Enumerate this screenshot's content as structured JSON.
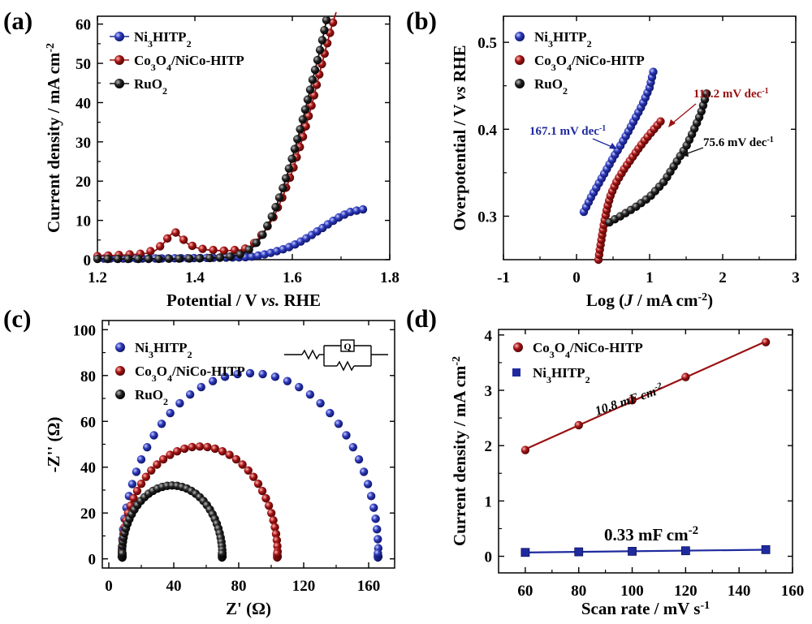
{
  "colors": {
    "blue": "#1f2a9e",
    "red": "#9b1111",
    "black": "#111111"
  },
  "chart_data": [
    {
      "type": "line",
      "panel_label": "(a)",
      "xlabel": "Potential / V ",
      "xlabel_em": "vs.",
      "xlabel_tail": " RHE",
      "ylabel": "Current density / mA cm",
      "ylabel_sup": "-2",
      "xlim": [
        1.2,
        1.8
      ],
      "ylim": [
        0,
        62
      ],
      "xticks": [
        1.2,
        1.4,
        1.6,
        1.8
      ],
      "xtick_labels": [
        "1.2",
        "1.4",
        "1.6",
        "1.8"
      ],
      "yticks": [
        0,
        10,
        20,
        30,
        40,
        50,
        60
      ],
      "ytick_labels": [
        "0",
        "10",
        "20",
        "30",
        "40",
        "50",
        "60"
      ],
      "legend": [
        {
          "pre": "Ni",
          "sub1": "3",
          "mid": "HITP",
          "sub2": "2",
          "post": "",
          "color": "#1f2a9e"
        },
        {
          "pre": "Co",
          "sub1": "3",
          "mid": "O",
          "sub2": "4",
          "post": "/NiCo-HITP",
          "color": "#9b1111"
        },
        {
          "pre": "RuO",
          "sub1": "2",
          "mid": "",
          "sub2": "",
          "post": "",
          "color": "#111111"
        }
      ],
      "series": [
        {
          "name": "Ni3HITP2",
          "color": "#1f2a9e",
          "x": [
            1.2,
            1.3,
            1.4,
            1.45,
            1.5,
            1.52,
            1.55,
            1.58,
            1.6,
            1.62,
            1.64,
            1.66,
            1.68,
            1.7,
            1.72,
            1.745
          ],
          "y": [
            0.3,
            0.3,
            0.4,
            0.5,
            0.6,
            0.8,
            1.5,
            2.6,
            3.5,
            4.8,
            6.3,
            7.9,
            9.6,
            11.1,
            12.2,
            12.8
          ]
        },
        {
          "name": "Co3O4/NiCo-HITP",
          "color": "#9b1111",
          "x": [
            1.2,
            1.3,
            1.33,
            1.35,
            1.36,
            1.37,
            1.39,
            1.42,
            1.46,
            1.5,
            1.52,
            1.54,
            1.56,
            1.58,
            1.6,
            1.62,
            1.64,
            1.66,
            1.68,
            1.69
          ],
          "y": [
            0.9,
            1.6,
            3.5,
            6.3,
            7.0,
            5.8,
            3.7,
            2.6,
            2.3,
            2.6,
            4.0,
            6.8,
            10.5,
            16.0,
            22.5,
            30.5,
            39.5,
            49.5,
            59.0,
            63.0
          ]
        },
        {
          "name": "RuO2",
          "color": "#111111",
          "x": [
            1.2,
            1.3,
            1.4,
            1.45,
            1.48,
            1.5,
            1.52,
            1.54,
            1.56,
            1.58,
            1.6,
            1.62,
            1.64,
            1.66,
            1.67
          ],
          "y": [
            0.2,
            0.2,
            0.3,
            0.5,
            0.9,
            1.6,
            3.3,
            6.5,
            11.5,
            18.0,
            26.0,
            35.0,
            45.0,
            55.0,
            61.0
          ]
        }
      ]
    },
    {
      "type": "line",
      "panel_label": "(b)",
      "xlabel": "Log (",
      "xlabel_em": "J",
      "xlabel_tail": " / mA cm",
      "xlabel_sup": "-2",
      "xlabel_end": ")",
      "ylabel": "Overpotential / V ",
      "ylabel_em": "vs",
      "ylabel_tail": " RHE",
      "xlim": [
        -1,
        3
      ],
      "ylim": [
        0.25,
        0.53
      ],
      "xticks": [
        -1,
        0,
        1,
        2,
        3
      ],
      "xtick_labels": [
        "-1",
        "0",
        "1",
        "2",
        "3"
      ],
      "yticks": [
        0.3,
        0.4,
        0.5
      ],
      "ytick_labels": [
        "0.3",
        "0.4",
        "0.5"
      ],
      "legend": [
        {
          "pre": "Ni",
          "sub1": "3",
          "mid": "HITP",
          "sub2": "2",
          "post": "",
          "color": "#1f2a9e"
        },
        {
          "pre": "Co",
          "sub1": "3",
          "mid": "O",
          "sub2": "4",
          "post": "/NiCo-HITP",
          "color": "#9b1111"
        },
        {
          "pre": "RuO",
          "sub1": "2",
          "mid": "",
          "sub2": "",
          "post": "",
          "color": "#111111"
        }
      ],
      "annotations": [
        {
          "text": "167.1 mV dec",
          "sup": "-1",
          "color": "#1f2a9e"
        },
        {
          "text": "111.2 mV dec",
          "sup": "-1",
          "color": "#9b1111"
        },
        {
          "text": "75.6 mV dec",
          "sup": "-1",
          "color": "#111111"
        }
      ],
      "series": [
        {
          "name": "Ni3HITP2",
          "color": "#1f2a9e",
          "x": [
            0.1,
            0.2,
            0.3,
            0.4,
            0.5,
            0.6,
            0.7,
            0.8,
            0.9,
            1.0,
            1.05
          ],
          "y": [
            0.305,
            0.322,
            0.337,
            0.352,
            0.367,
            0.381,
            0.396,
            0.412,
            0.428,
            0.448,
            0.466
          ]
        },
        {
          "name": "Co3O4/NiCo-HITP",
          "color": "#9b1111",
          "x": [
            0.3,
            0.32,
            0.35,
            0.38,
            0.42,
            0.47,
            0.55,
            0.65,
            0.75,
            0.85,
            0.95,
            1.05,
            1.15
          ],
          "y": [
            0.25,
            0.262,
            0.278,
            0.293,
            0.31,
            0.325,
            0.34,
            0.354,
            0.366,
            0.378,
            0.389,
            0.399,
            0.409
          ]
        },
        {
          "name": "RuO2",
          "color": "#111111",
          "x": [
            0.45,
            0.6,
            0.8,
            1.0,
            1.2,
            1.35,
            1.5,
            1.6,
            1.7,
            1.78
          ],
          "y": [
            0.293,
            0.3,
            0.31,
            0.322,
            0.34,
            0.36,
            0.38,
            0.398,
            0.418,
            0.441
          ]
        }
      ]
    },
    {
      "type": "scatter",
      "panel_label": "(c)",
      "xlabel": "Z' (Ω)",
      "ylabel": "-Z'' (Ω)",
      "xlim": [
        -4,
        176
      ],
      "ylim": [
        -4,
        104
      ],
      "xticks": [
        0,
        40,
        80,
        120,
        160
      ],
      "xtick_labels": [
        "0",
        "40",
        "80",
        "120",
        "160"
      ],
      "yticks": [
        0,
        20,
        40,
        60,
        80,
        100
      ],
      "ytick_labels": [
        "0",
        "20",
        "40",
        "60",
        "80",
        "100"
      ],
      "legend": [
        {
          "pre": "Ni",
          "sub1": "3",
          "mid": "HITP",
          "sub2": "2",
          "post": "",
          "color": "#1f2a9e"
        },
        {
          "pre": "Co",
          "sub1": "3",
          "mid": "O",
          "sub2": "4",
          "post": "/NiCo-HITP",
          "color": "#9b1111"
        },
        {
          "pre": "RuO",
          "sub1": "2",
          "mid": "",
          "sub2": "",
          "post": "",
          "color": "#111111"
        }
      ],
      "circuit_label": "Q",
      "series": [
        {
          "name": "Ni3HITP2",
          "color": "#1f2a9e",
          "rs": 8,
          "rct": 158,
          "height": 80
        },
        {
          "name": "Co3O4/NiCo-HITP",
          "color": "#9b1111",
          "rs": 8,
          "rct": 96,
          "height": 48
        },
        {
          "name": "RuO2",
          "color": "#111111",
          "rs": 8,
          "rct": 62,
          "height": 31
        }
      ]
    },
    {
      "type": "line",
      "panel_label": "(d)",
      "xlabel": "Scan rate / mV s",
      "xlabel_sup": "-1",
      "ylabel": "Current density / mA cm",
      "ylabel_sup": "-2",
      "xlim": [
        50,
        160
      ],
      "ylim": [
        -0.3,
        4.1
      ],
      "xticks": [
        60,
        80,
        100,
        120,
        140,
        160
      ],
      "xtick_labels": [
        "60",
        "80",
        "100",
        "120",
        "140",
        "160"
      ],
      "yticks": [
        0,
        1,
        2,
        3,
        4
      ],
      "ytick_labels": [
        "0",
        "1",
        "2",
        "3",
        "4"
      ],
      "legend": [
        {
          "pre": "Co",
          "sub1": "3",
          "mid": "O",
          "sub2": "4",
          "post": "/NiCo-HITP",
          "color": "#9b1111"
        },
        {
          "pre": "Ni",
          "sub1": "3",
          "mid": "HITP",
          "sub2": "2",
          "post": "",
          "color": "#1f2a9e"
        }
      ],
      "annotations": [
        {
          "text": "10.8 mF cm",
          "sup": "-2",
          "color": "#111111"
        },
        {
          "text": "0.33 mF cm",
          "sup": "-2",
          "color": "#111111"
        }
      ],
      "series": [
        {
          "name": "Co3O4/NiCo-HITP",
          "color": "#9b1111",
          "marker": "circle",
          "x": [
            60,
            80,
            100,
            120,
            150
          ],
          "y": [
            1.92,
            2.37,
            2.82,
            3.24,
            3.87
          ]
        },
        {
          "name": "Ni3HITP2",
          "color": "#1f2a9e",
          "marker": "square",
          "x": [
            60,
            80,
            100,
            120,
            150
          ],
          "y": [
            0.07,
            0.08,
            0.09,
            0.1,
            0.12
          ]
        }
      ]
    }
  ]
}
